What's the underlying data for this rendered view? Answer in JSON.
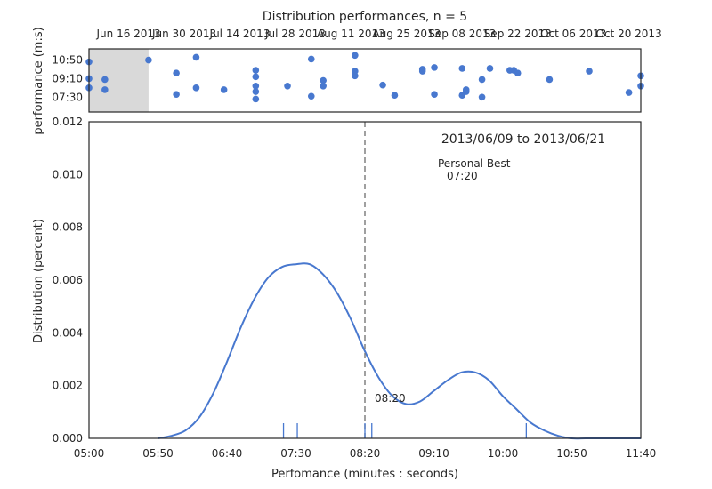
{
  "figure": {
    "title": "Distribution performances, n = 5"
  },
  "chart_data": [
    {
      "type": "scatter",
      "ylabel": "performance (m:s)",
      "x_ticks": [
        "Jun 16 2013",
        "Jun 30 2013",
        "Jul 14 2013",
        "Jul 28 2013",
        "Aug 11 2013",
        "Aug 25 2013",
        "Sep 08 2013",
        "Sep 22 2013",
        "Oct 06 2013",
        "Oct 20 2013"
      ],
      "y_ticks": [
        "10:50",
        "09:10",
        "07:30"
      ],
      "xlim": [
        "2013-06-06",
        "2013-10-23"
      ],
      "ylim_seconds": [
        370,
        710
      ],
      "highlight_range": [
        "2013-06-06",
        "2013-06-21"
      ],
      "highlight_color": "#d9d9d9",
      "point_color": "#4878cf",
      "points": [
        {
          "date": "2013-06-06",
          "seconds": 640
        },
        {
          "date": "2013-06-06",
          "seconds": 550
        },
        {
          "date": "2013-06-06",
          "seconds": 500
        },
        {
          "date": "2013-06-10",
          "seconds": 545
        },
        {
          "date": "2013-06-10",
          "seconds": 490
        },
        {
          "date": "2013-06-21",
          "seconds": 650
        },
        {
          "date": "2013-06-28",
          "seconds": 580
        },
        {
          "date": "2013-06-28",
          "seconds": 465
        },
        {
          "date": "2013-07-03",
          "seconds": 665
        },
        {
          "date": "2013-07-03",
          "seconds": 500
        },
        {
          "date": "2013-07-10",
          "seconds": 490
        },
        {
          "date": "2013-07-18",
          "seconds": 595
        },
        {
          "date": "2013-07-18",
          "seconds": 560
        },
        {
          "date": "2013-07-18",
          "seconds": 510
        },
        {
          "date": "2013-07-18",
          "seconds": 480
        },
        {
          "date": "2013-07-18",
          "seconds": 440
        },
        {
          "date": "2013-07-26",
          "seconds": 510
        },
        {
          "date": "2013-08-01",
          "seconds": 655
        },
        {
          "date": "2013-08-01",
          "seconds": 455
        },
        {
          "date": "2013-08-04",
          "seconds": 540
        },
        {
          "date": "2013-08-04",
          "seconds": 510
        },
        {
          "date": "2013-08-12",
          "seconds": 590
        },
        {
          "date": "2013-08-12",
          "seconds": 565
        },
        {
          "date": "2013-08-12",
          "seconds": 675
        },
        {
          "date": "2013-08-19",
          "seconds": 515
        },
        {
          "date": "2013-08-22",
          "seconds": 460
        },
        {
          "date": "2013-08-29",
          "seconds": 600
        },
        {
          "date": "2013-08-29",
          "seconds": 590
        },
        {
          "date": "2013-09-01",
          "seconds": 610
        },
        {
          "date": "2013-09-01",
          "seconds": 465
        },
        {
          "date": "2013-09-08",
          "seconds": 605
        },
        {
          "date": "2013-09-08",
          "seconds": 460
        },
        {
          "date": "2013-09-09",
          "seconds": 490
        },
        {
          "date": "2013-09-09",
          "seconds": 480
        },
        {
          "date": "2013-09-13",
          "seconds": 545
        },
        {
          "date": "2013-09-13",
          "seconds": 450
        },
        {
          "date": "2013-09-15",
          "seconds": 605
        },
        {
          "date": "2013-09-20",
          "seconds": 595
        },
        {
          "date": "2013-09-21",
          "seconds": 595
        },
        {
          "date": "2013-09-22",
          "seconds": 580
        },
        {
          "date": "2013-09-30",
          "seconds": 545
        },
        {
          "date": "2013-10-10",
          "seconds": 590
        },
        {
          "date": "2013-10-20",
          "seconds": 475
        },
        {
          "date": "2013-10-23",
          "seconds": 565
        },
        {
          "date": "2013-10-23",
          "seconds": 510
        }
      ]
    },
    {
      "type": "line",
      "xlabel": "Perfomance (minutes : seconds)",
      "ylabel": "Distribution (percent)",
      "x_ticks": [
        "05:00",
        "05:50",
        "06:40",
        "07:30",
        "08:20",
        "09:10",
        "10:00",
        "10:50",
        "11:40"
      ],
      "y_ticks": [
        "0.000",
        "0.002",
        "0.004",
        "0.006",
        "0.008",
        "0.010",
        "0.012"
      ],
      "xlim_seconds": [
        300,
        700
      ],
      "ylim": [
        0,
        0.012
      ],
      "line_color": "#4878cf",
      "series": [
        {
          "x": [
            350,
            360,
            370,
            380,
            390,
            400,
            410,
            420,
            430,
            440,
            450,
            460,
            470,
            480,
            490,
            500,
            510,
            520,
            530,
            540,
            550,
            560,
            570,
            580,
            590,
            600,
            610,
            620,
            630,
            640,
            650,
            660,
            670,
            680,
            690,
            700
          ],
          "y": [
            0.0,
            0.0001,
            0.0003,
            0.0008,
            0.0017,
            0.0029,
            0.0042,
            0.0053,
            0.0061,
            0.0065,
            0.0066,
            0.0066,
            0.0062,
            0.0055,
            0.0045,
            0.0033,
            0.0023,
            0.0016,
            0.0013,
            0.0014,
            0.0018,
            0.0022,
            0.0025,
            0.0025,
            0.0022,
            0.0016,
            0.0011,
            0.0006,
            0.0003,
            0.0001,
            0.0,
            0.0,
            0.0,
            0.0,
            0.0,
            0.0
          ]
        }
      ],
      "rug_seconds": [
        441,
        451,
        500,
        505,
        617
      ],
      "vline_seconds": 500,
      "vline_label": "08:20",
      "personal_best_title": "Personal Best",
      "personal_best_value": "07:20",
      "range_label": "2013/06/09 to 2013/06/21"
    }
  ]
}
